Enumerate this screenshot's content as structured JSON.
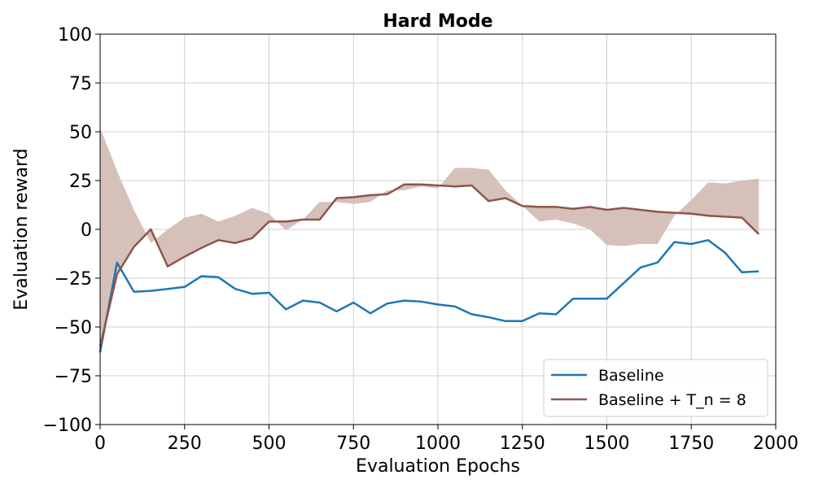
{
  "chart_data": {
    "type": "line",
    "title": "Hard Mode",
    "xlabel": "Evaluation Epochs",
    "ylabel": "Evaluation reward",
    "xlim": [
      0,
      2000
    ],
    "ylim": [
      -100,
      100
    ],
    "xticks": [
      0,
      250,
      500,
      750,
      1000,
      1250,
      1500,
      1750,
      2000
    ],
    "yticks": [
      -100,
      -75,
      -50,
      -25,
      0,
      25,
      50,
      75,
      100
    ],
    "xtick_labels": [
      "0",
      "250",
      "500",
      "750",
      "1000",
      "1250",
      "1500",
      "1750",
      "2000"
    ],
    "ytick_labels": [
      "−100",
      "−75",
      "−50",
      "−25",
      "0",
      "25",
      "50",
      "75",
      "100"
    ],
    "grid": true,
    "legend_position": "bottom-right",
    "x": [
      0,
      50,
      100,
      150,
      200,
      250,
      300,
      350,
      400,
      450,
      500,
      550,
      600,
      650,
      700,
      750,
      800,
      850,
      900,
      950,
      1000,
      1050,
      1100,
      1150,
      1200,
      1250,
      1300,
      1350,
      1400,
      1450,
      1500,
      1550,
      1600,
      1650,
      1700,
      1750,
      1800,
      1850,
      1900,
      1950
    ],
    "series": [
      {
        "name": "Baseline",
        "color": "#1f77b4",
        "values": [
          -63,
          -17,
          -32,
          -31.5,
          -30.5,
          -29.5,
          -24,
          -24.5,
          -30.5,
          -33,
          -32.5,
          -41,
          -36.5,
          -37.5,
          -42,
          -37.5,
          -43,
          -38,
          -36.5,
          -37,
          -38.5,
          -39.5,
          -43.5,
          -45,
          -47,
          -47,
          -43,
          -43.5,
          -35.5,
          -35.5,
          -35.5,
          -27.5,
          -19.5,
          -17,
          -6.5,
          -7.5,
          -5.5,
          -12,
          -22,
          -21.5
        ]
      },
      {
        "name": "Baseline + T_n = 8",
        "color": "#8c564b",
        "values": [
          -60,
          -23,
          -9,
          0,
          -19,
          -14,
          -9.5,
          -5.5,
          -7,
          -4.5,
          4,
          4,
          5,
          5,
          16,
          16.5,
          17.5,
          18,
          23,
          23,
          22.5,
          22,
          22.5,
          14.5,
          16,
          12,
          11.5,
          11.5,
          10.5,
          11.5,
          10,
          11,
          10,
          9,
          8.5,
          8,
          7,
          6.5,
          6,
          -2.5
        ],
        "band_upper": [
          52,
          30,
          10,
          -7,
          0,
          6,
          8,
          4,
          7,
          11,
          8,
          -0.5,
          5,
          14,
          14,
          13,
          14,
          20,
          20,
          22,
          21,
          31.5,
          31.5,
          30.5,
          20,
          12,
          4,
          5,
          3,
          0,
          -8,
          -8.5,
          -7.5,
          -7.5,
          7,
          15,
          24,
          23.5,
          25,
          26
        ],
        "band_lower": [
          -60,
          -23,
          -9,
          0,
          -19,
          -14,
          -9.5,
          -5.5,
          -7,
          -4.5,
          4,
          4,
          5,
          5,
          16,
          16.5,
          17.5,
          18,
          23,
          23,
          22.5,
          22,
          22.5,
          14.5,
          16,
          12,
          11.5,
          11.5,
          10.5,
          11.5,
          10,
          11,
          10,
          9,
          8.5,
          8,
          7,
          6.5,
          6,
          -2.5
        ],
        "band_color": "#d6c1ba"
      }
    ]
  }
}
